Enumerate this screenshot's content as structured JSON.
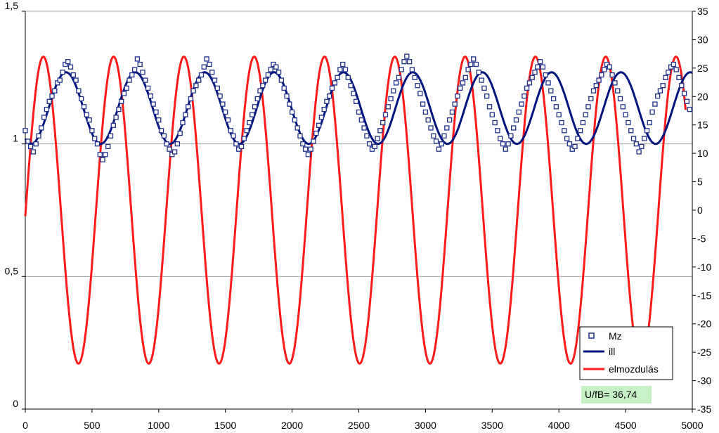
{
  "chart_data": {
    "type": "scatter+line",
    "x_axis": {
      "min": 0,
      "max": 5000,
      "ticks": [
        0,
        500,
        1000,
        1500,
        2000,
        2500,
        3000,
        3500,
        4000,
        4500,
        5000
      ],
      "tick_labels": [
        "0",
        "500",
        "1000",
        "1500",
        "2000",
        "2500",
        "3000",
        "3500",
        "4000",
        "4500",
        "5000"
      ]
    },
    "y_left": {
      "min": 0,
      "max": 1.5,
      "ticks": [
        0,
        0.5,
        1,
        1.5
      ],
      "tick_labels": [
        "0",
        "0,5",
        "1",
        "1,5"
      ]
    },
    "y_right": {
      "min": -35,
      "max": 35,
      "ticks": [
        -35,
        -30,
        -25,
        -20,
        -15,
        -10,
        -5,
        0,
        5,
        10,
        15,
        20,
        25,
        30,
        35
      ],
      "tick_labels": [
        "-35",
        "-30",
        "-25",
        "-20",
        "-15",
        "-10",
        "-5",
        "0",
        "5",
        "10",
        "15",
        "20",
        "25",
        "30",
        "35"
      ]
    },
    "grid": {
      "horizontal": true,
      "vertical": false
    },
    "legend_position": "bottom-right",
    "annotation": "U/fB= 36,74",
    "colors": {
      "mz": "#1f2f8a",
      "ill": "#00137f",
      "elmozdulas": "#ff1a1a",
      "grid": "#a6a6a6",
      "axis": "#000000",
      "annotation_bg": "#c6f2c6"
    },
    "series": [
      {
        "name": "Mz",
        "axis": "left",
        "style": "markers",
        "points": [
          [
            0,
            1.05
          ],
          [
            20,
            1.01
          ],
          [
            40,
            0.99
          ],
          [
            60,
            0.97
          ],
          [
            80,
            1.0
          ],
          [
            100,
            1.03
          ],
          [
            120,
            1.06
          ],
          [
            140,
            1.1
          ],
          [
            160,
            1.13
          ],
          [
            180,
            1.16
          ],
          [
            200,
            1.18
          ],
          [
            220,
            1.2
          ],
          [
            240,
            1.23
          ],
          [
            260,
            1.24
          ],
          [
            280,
            1.27
          ],
          [
            300,
            1.3
          ],
          [
            320,
            1.31
          ],
          [
            340,
            1.29
          ],
          [
            360,
            1.26
          ],
          [
            380,
            1.24
          ],
          [
            400,
            1.2
          ],
          [
            420,
            1.17
          ],
          [
            440,
            1.14
          ],
          [
            460,
            1.11
          ],
          [
            480,
            1.09
          ],
          [
            500,
            1.05
          ],
          [
            520,
            1.02
          ],
          [
            540,
            1.0
          ],
          [
            560,
            0.96
          ],
          [
            580,
            0.94
          ],
          [
            600,
            0.96
          ],
          [
            620,
            0.99
          ],
          [
            640,
            1.03
          ],
          [
            660,
            1.07
          ],
          [
            680,
            1.1
          ],
          [
            700,
            1.13
          ],
          [
            720,
            1.16
          ],
          [
            740,
            1.19
          ],
          [
            760,
            1.21
          ],
          [
            780,
            1.24
          ],
          [
            800,
            1.26
          ],
          [
            820,
            1.28
          ],
          [
            840,
            1.32
          ],
          [
            860,
            1.3
          ],
          [
            880,
            1.27
          ],
          [
            900,
            1.24
          ],
          [
            920,
            1.21
          ],
          [
            940,
            1.18
          ],
          [
            960,
            1.15
          ],
          [
            980,
            1.12
          ],
          [
            1000,
            1.09
          ],
          [
            1020,
            1.05
          ],
          [
            1040,
            1.03
          ],
          [
            1060,
            1.0
          ],
          [
            1080,
            0.98
          ],
          [
            1100,
            0.96
          ],
          [
            1120,
            0.97
          ],
          [
            1140,
            1.0
          ],
          [
            1160,
            1.04
          ],
          [
            1180,
            1.08
          ],
          [
            1200,
            1.11
          ],
          [
            1220,
            1.14
          ],
          [
            1240,
            1.17
          ],
          [
            1260,
            1.2
          ],
          [
            1280,
            1.22
          ],
          [
            1300,
            1.24
          ],
          [
            1320,
            1.26
          ],
          [
            1340,
            1.29
          ],
          [
            1360,
            1.32
          ],
          [
            1380,
            1.3
          ],
          [
            1400,
            1.27
          ],
          [
            1420,
            1.24
          ],
          [
            1440,
            1.21
          ],
          [
            1460,
            1.18
          ],
          [
            1480,
            1.15
          ],
          [
            1500,
            1.12
          ],
          [
            1520,
            1.09
          ],
          [
            1540,
            1.05
          ],
          [
            1560,
            1.03
          ],
          [
            1580,
            1.0
          ],
          [
            1600,
            0.98
          ],
          [
            1620,
            0.99
          ],
          [
            1640,
            1.02
          ],
          [
            1660,
            1.05
          ],
          [
            1680,
            1.08
          ],
          [
            1700,
            1.11
          ],
          [
            1720,
            1.14
          ],
          [
            1740,
            1.17
          ],
          [
            1760,
            1.2
          ],
          [
            1780,
            1.22
          ],
          [
            1800,
            1.24
          ],
          [
            1820,
            1.26
          ],
          [
            1840,
            1.28
          ],
          [
            1860,
            1.3
          ],
          [
            1880,
            1.29
          ],
          [
            1900,
            1.27
          ],
          [
            1920,
            1.24
          ],
          [
            1940,
            1.21
          ],
          [
            1960,
            1.18
          ],
          [
            1980,
            1.15
          ],
          [
            2000,
            1.12
          ],
          [
            2020,
            1.09
          ],
          [
            2040,
            1.06
          ],
          [
            2060,
            1.03
          ],
          [
            2080,
            1.0
          ],
          [
            2100,
            0.98
          ],
          [
            2120,
            0.96
          ],
          [
            2140,
            0.98
          ],
          [
            2160,
            1.01
          ],
          [
            2180,
            1.04
          ],
          [
            2200,
            1.07
          ],
          [
            2220,
            1.1
          ],
          [
            2240,
            1.13
          ],
          [
            2260,
            1.16
          ],
          [
            2280,
            1.18
          ],
          [
            2300,
            1.21
          ],
          [
            2320,
            1.23
          ],
          [
            2340,
            1.25
          ],
          [
            2360,
            1.28
          ],
          [
            2380,
            1.3
          ],
          [
            2400,
            1.28
          ],
          [
            2420,
            1.25
          ],
          [
            2440,
            1.22
          ],
          [
            2460,
            1.19
          ],
          [
            2480,
            1.16
          ],
          [
            2500,
            1.12
          ],
          [
            2520,
            1.09
          ],
          [
            2540,
            1.06
          ],
          [
            2560,
            1.03
          ],
          [
            2580,
            1.0
          ],
          [
            2600,
            0.98
          ],
          [
            2620,
            0.99
          ],
          [
            2640,
            1.02
          ],
          [
            2660,
            1.05
          ],
          [
            2680,
            1.08
          ],
          [
            2700,
            1.11
          ],
          [
            2720,
            1.14
          ],
          [
            2740,
            1.17
          ],
          [
            2760,
            1.2
          ],
          [
            2780,
            1.23
          ],
          [
            2800,
            1.25
          ],
          [
            2820,
            1.28
          ],
          [
            2840,
            1.31
          ],
          [
            2860,
            1.33
          ],
          [
            2880,
            1.31
          ],
          [
            2900,
            1.28
          ],
          [
            2920,
            1.25
          ],
          [
            2940,
            1.22
          ],
          [
            2960,
            1.19
          ],
          [
            2980,
            1.15
          ],
          [
            3000,
            1.12
          ],
          [
            3020,
            1.09
          ],
          [
            3040,
            1.06
          ],
          [
            3060,
            1.03
          ],
          [
            3080,
            1.01
          ],
          [
            3100,
            0.98
          ],
          [
            3120,
            1.0
          ],
          [
            3140,
            1.03
          ],
          [
            3160,
            1.06
          ],
          [
            3180,
            1.09
          ],
          [
            3200,
            1.12
          ],
          [
            3220,
            1.15
          ],
          [
            3240,
            1.18
          ],
          [
            3260,
            1.21
          ],
          [
            3280,
            1.23
          ],
          [
            3300,
            1.25
          ],
          [
            3320,
            1.28
          ],
          [
            3340,
            1.3
          ],
          [
            3360,
            1.32
          ],
          [
            3380,
            1.3
          ],
          [
            3400,
            1.27
          ],
          [
            3420,
            1.24
          ],
          [
            3440,
            1.21
          ],
          [
            3460,
            1.18
          ],
          [
            3480,
            1.14
          ],
          [
            3500,
            1.11
          ],
          [
            3520,
            1.08
          ],
          [
            3540,
            1.05
          ],
          [
            3560,
            1.02
          ],
          [
            3580,
            1.0
          ],
          [
            3600,
            0.98
          ],
          [
            3620,
            1.0
          ],
          [
            3640,
            1.03
          ],
          [
            3660,
            1.06
          ],
          [
            3680,
            1.09
          ],
          [
            3700,
            1.12
          ],
          [
            3720,
            1.15
          ],
          [
            3740,
            1.18
          ],
          [
            3760,
            1.21
          ],
          [
            3780,
            1.23
          ],
          [
            3800,
            1.25
          ],
          [
            3820,
            1.27
          ],
          [
            3840,
            1.29
          ],
          [
            3860,
            1.31
          ],
          [
            3880,
            1.29
          ],
          [
            3900,
            1.26
          ],
          [
            3920,
            1.23
          ],
          [
            3940,
            1.2
          ],
          [
            3960,
            1.17
          ],
          [
            3980,
            1.14
          ],
          [
            4000,
            1.11
          ],
          [
            4020,
            1.08
          ],
          [
            4040,
            1.05
          ],
          [
            4060,
            1.02
          ],
          [
            4080,
            1.0
          ],
          [
            4100,
            0.98
          ],
          [
            4120,
            0.99
          ],
          [
            4140,
            1.02
          ],
          [
            4160,
            1.05
          ],
          [
            4180,
            1.08
          ],
          [
            4200,
            1.11
          ],
          [
            4220,
            1.14
          ],
          [
            4240,
            1.17
          ],
          [
            4260,
            1.2
          ],
          [
            4280,
            1.22
          ],
          [
            4300,
            1.24
          ],
          [
            4320,
            1.26
          ],
          [
            4340,
            1.28
          ],
          [
            4360,
            1.3
          ],
          [
            4380,
            1.29
          ],
          [
            4400,
            1.26
          ],
          [
            4420,
            1.23
          ],
          [
            4440,
            1.2
          ],
          [
            4460,
            1.17
          ],
          [
            4480,
            1.14
          ],
          [
            4500,
            1.11
          ],
          [
            4520,
            1.08
          ],
          [
            4540,
            1.05
          ],
          [
            4560,
            1.02
          ],
          [
            4580,
            1.0
          ],
          [
            4600,
            0.97
          ],
          [
            4620,
            0.99
          ],
          [
            4640,
            1.02
          ],
          [
            4660,
            1.05
          ],
          [
            4680,
            1.08
          ],
          [
            4700,
            1.12
          ],
          [
            4720,
            1.15
          ],
          [
            4740,
            1.18
          ],
          [
            4760,
            1.2
          ],
          [
            4780,
            1.22
          ],
          [
            4800,
            1.25
          ],
          [
            4820,
            1.27
          ],
          [
            4840,
            1.29
          ],
          [
            4860,
            1.3
          ],
          [
            4880,
            1.28
          ],
          [
            4900,
            1.25
          ],
          [
            4920,
            1.22
          ],
          [
            4940,
            1.19
          ],
          [
            4960,
            1.16
          ],
          [
            4980,
            1.13
          ]
        ]
      },
      {
        "name": "ill",
        "axis": "left",
        "style": "line",
        "params": {
          "mean": 1.135,
          "amplitude": 0.135,
          "period": 520,
          "phase_x": 305
        }
      },
      {
        "name": "elmozdulás",
        "axis": "right",
        "style": "line",
        "params": {
          "mean": 0,
          "amplitude": 27,
          "period": 527,
          "peak_x": 135,
          "x_end": 4950
        }
      }
    ]
  }
}
